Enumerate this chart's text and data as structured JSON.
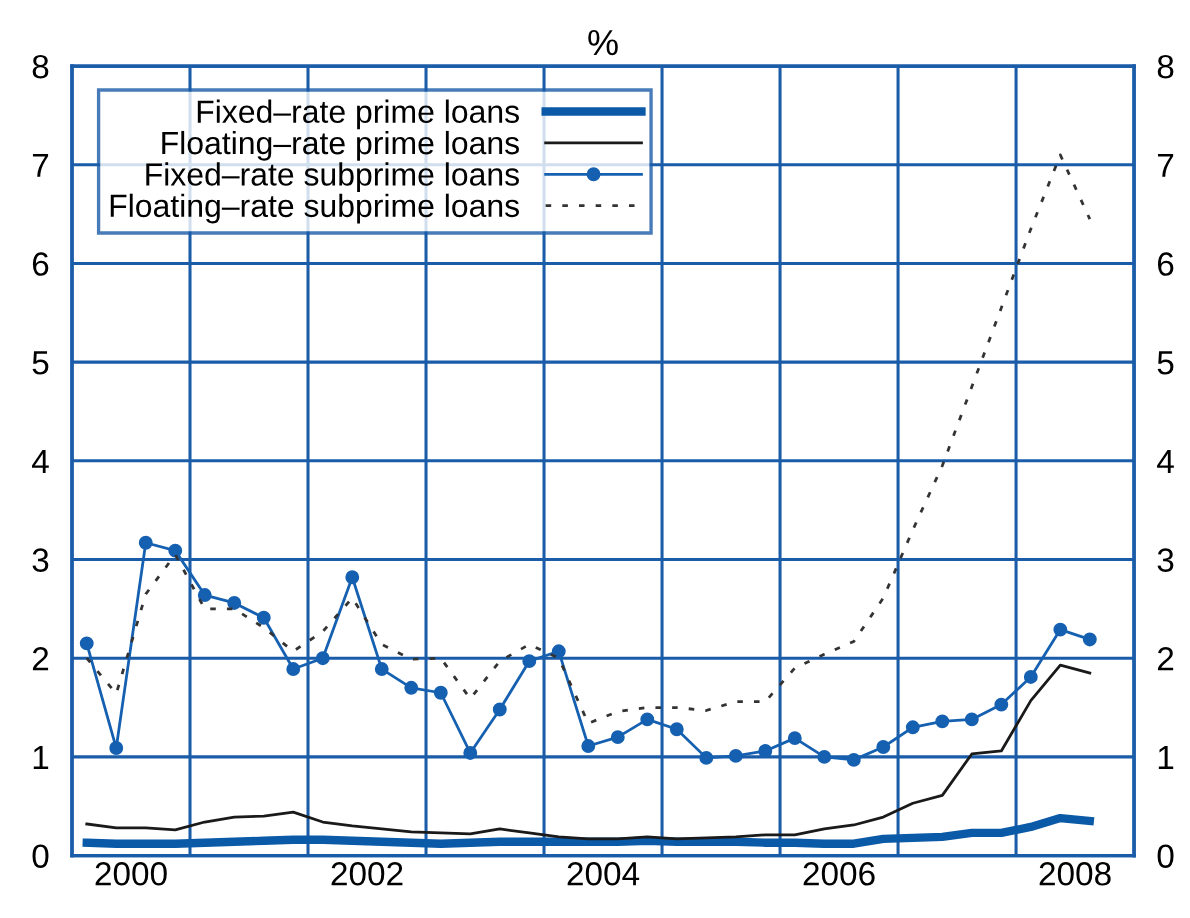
{
  "chart_data": {
    "type": "line",
    "title": "%",
    "x": [
      2000.125,
      2000.375,
      2000.625,
      2000.875,
      2001.125,
      2001.375,
      2001.625,
      2001.875,
      2002.125,
      2002.375,
      2002.625,
      2002.875,
      2003.125,
      2003.375,
      2003.625,
      2003.875,
      2004.125,
      2004.375,
      2004.625,
      2004.875,
      2005.125,
      2005.375,
      2005.625,
      2005.875,
      2006.125,
      2006.375,
      2006.625,
      2006.875,
      2007.125,
      2007.375,
      2007.625,
      2007.875,
      2008.125,
      2008.375,
      2008.625
    ],
    "series": [
      {
        "name": "Fixed–rate prime loans",
        "color": "#0b5aa8",
        "line_style": "solid",
        "marker": "none",
        "values": [
          0.13,
          0.12,
          0.12,
          0.12,
          0.13,
          0.14,
          0.15,
          0.16,
          0.16,
          0.15,
          0.14,
          0.13,
          0.12,
          0.13,
          0.14,
          0.14,
          0.14,
          0.14,
          0.14,
          0.15,
          0.14,
          0.14,
          0.14,
          0.13,
          0.13,
          0.12,
          0.12,
          0.17,
          0.18,
          0.19,
          0.23,
          0.23,
          0.29,
          0.38,
          0.35
        ]
      },
      {
        "name": "Floating–rate prime loans",
        "color": "#1a1a1a",
        "line_style": "solid",
        "marker": "none",
        "values": [
          0.32,
          0.28,
          0.28,
          0.26,
          0.34,
          0.39,
          0.4,
          0.44,
          0.34,
          0.3,
          0.27,
          0.24,
          0.23,
          0.22,
          0.27,
          0.23,
          0.19,
          0.17,
          0.17,
          0.19,
          0.17,
          0.18,
          0.19,
          0.21,
          0.21,
          0.27,
          0.31,
          0.39,
          0.53,
          0.61,
          1.03,
          1.06,
          1.57,
          1.93,
          1.85
        ]
      },
      {
        "name": "Fixed–rate subprime loans",
        "color": "#1560b0",
        "line_style": "solid",
        "marker": "circle",
        "values": [
          2.15,
          1.09,
          3.17,
          3.09,
          2.64,
          2.56,
          2.41,
          1.89,
          2.0,
          2.82,
          1.89,
          1.7,
          1.65,
          1.04,
          1.48,
          1.97,
          2.07,
          1.11,
          1.2,
          1.38,
          1.28,
          0.99,
          1.01,
          1.06,
          1.19,
          1.0,
          0.97,
          1.1,
          1.3,
          1.36,
          1.38,
          1.53,
          1.81,
          2.29,
          2.19
        ]
      },
      {
        "name": "Floating–rate subprime loans",
        "color": "#333333",
        "line_style": "dotted",
        "marker": "none",
        "values": [
          2.0,
          1.64,
          2.65,
          3.05,
          2.5,
          2.5,
          2.31,
          2.07,
          2.27,
          2.61,
          2.14,
          1.99,
          2.0,
          1.59,
          1.97,
          2.14,
          2.0,
          1.34,
          1.46,
          1.5,
          1.5,
          1.47,
          1.56,
          1.56,
          1.9,
          2.04,
          2.17,
          2.61,
          3.3,
          3.95,
          4.75,
          5.55,
          6.35,
          7.1,
          6.45
        ]
      }
    ],
    "xlim": [
      2000,
      2009
    ],
    "xticks": [
      {
        "value": 2000.5,
        "label": "2000"
      },
      {
        "value": 2001,
        "label": null
      },
      {
        "value": 2002,
        "label": null
      },
      {
        "value": 2002.5,
        "label": "2002"
      },
      {
        "value": 2003,
        "label": null
      },
      {
        "value": 2004,
        "label": null
      },
      {
        "value": 2004.5,
        "label": "2004"
      },
      {
        "value": 2005,
        "label": null
      },
      {
        "value": 2006,
        "label": null
      },
      {
        "value": 2006.5,
        "label": "2006"
      },
      {
        "value": 2007,
        "label": null
      },
      {
        "value": 2008,
        "label": null
      },
      {
        "value": 2008.5,
        "label": "2008"
      }
    ],
    "ylim": [
      0,
      8
    ],
    "yticks": [
      0,
      1,
      2,
      3,
      4,
      5,
      6,
      7,
      8
    ],
    "y2lim": [
      0,
      8
    ],
    "y2ticks": [
      0,
      1,
      2,
      3,
      4,
      5,
      6,
      7,
      8
    ],
    "grid": true,
    "legend": "top left"
  }
}
